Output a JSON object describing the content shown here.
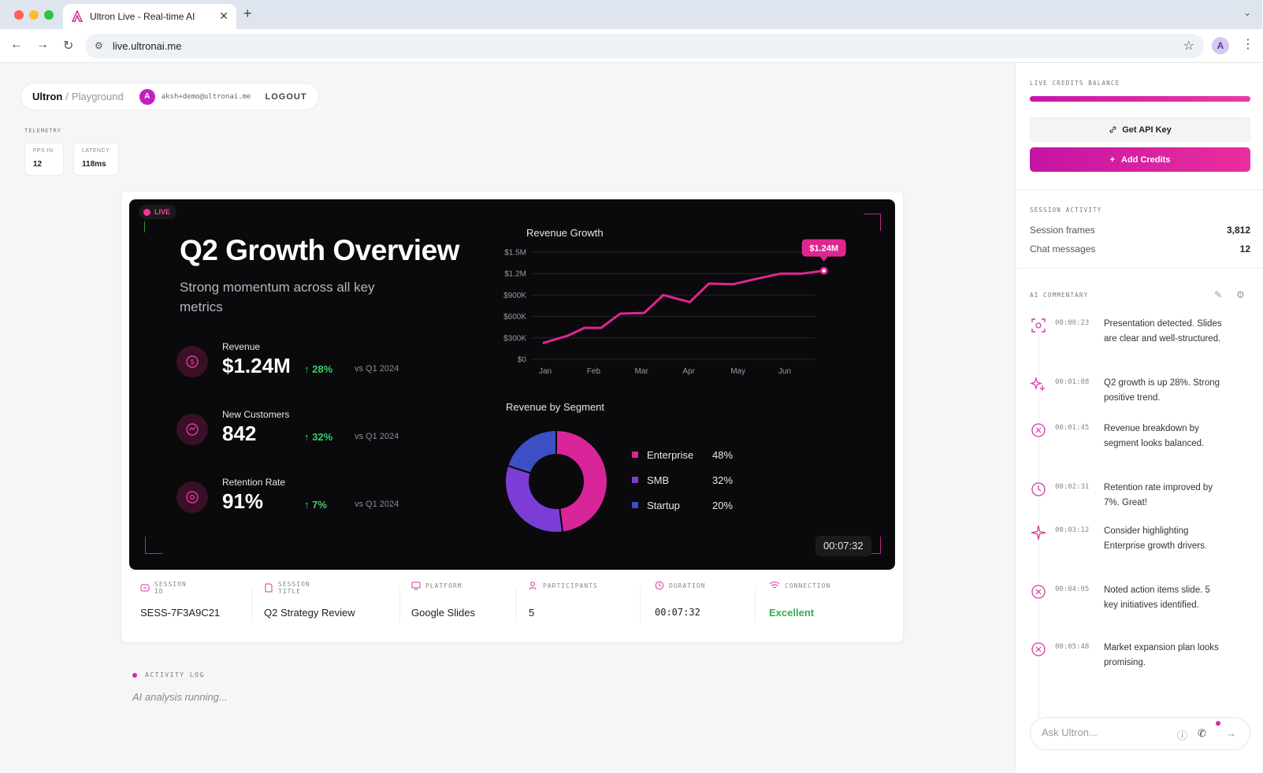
{
  "browser": {
    "tab_title": "Ultron Live - Real-time AI",
    "url": "live.ultronai.me",
    "profile_initial": "A"
  },
  "header": {
    "brand": "Ultron",
    "separator": "/",
    "page": "Playground",
    "avatar_initial": "A",
    "email": "aksh+demo@ultronai.me",
    "logout_label": "LOGOUT"
  },
  "telemetry": {
    "label": "TELEMETRY",
    "cards": [
      {
        "key": "FPS IN",
        "value": "12"
      },
      {
        "key": "LATENCY",
        "value": "118ms"
      }
    ]
  },
  "slide": {
    "live_label": "LIVE",
    "title": "Q2 Growth Overview",
    "subtitle": "Strong momentum across all key metrics",
    "metrics": [
      {
        "label": "Revenue",
        "value": "$1.24M",
        "delta": "↑ 28%",
        "vs": "vs Q1 2024"
      },
      {
        "label": "New Customers",
        "value": "842",
        "delta": "↑ 32%",
        "vs": "vs Q1 2024"
      },
      {
        "label": "Retention Rate",
        "value": "91%",
        "delta": "↑ 7%",
        "vs": "vs Q1 2024"
      }
    ],
    "timer": "00:07:32"
  },
  "chart_data": [
    {
      "type": "line",
      "title": "Revenue Growth",
      "xlabel": "",
      "ylabel": "",
      "x_ticks": [
        "Jan",
        "Feb",
        "Mar",
        "Apr",
        "May",
        "Jun"
      ],
      "y_ticks": [
        "$0",
        "$300K",
        "$600K",
        "$900K",
        "$1.2M",
        "$1.5M"
      ],
      "ylim": [
        0,
        1500000
      ],
      "x": [
        0,
        0.5,
        0.85,
        1.2,
        1.6,
        2.1,
        2.5,
        3.05,
        3.45,
        3.95,
        4.4,
        4.95,
        5.4,
        5.85
      ],
      "values": [
        230000,
        330000,
        440000,
        440000,
        640000,
        650000,
        900000,
        800000,
        1060000,
        1050000,
        1120000,
        1200000,
        1200000,
        1240000
      ],
      "annotation": "$1.24M",
      "grid": true,
      "color": "#e0268f"
    },
    {
      "type": "pie",
      "title": "Revenue by Segment",
      "donut": true,
      "categories": [
        "Enterprise",
        "SMB",
        "Startup"
      ],
      "values": [
        48,
        32,
        20
      ],
      "labels": [
        "48%",
        "32%",
        "20%"
      ],
      "colors": [
        "#d9259a",
        "#7b3dd6",
        "#3d4fc4"
      ],
      "legend": "right"
    }
  ],
  "session": {
    "fields": [
      {
        "key": "SESSION ID",
        "value": "SESS-7F3A9C21",
        "icon": "fingerprint-icon"
      },
      {
        "key": "SESSION TITLE",
        "value": "Q2 Strategy Review",
        "icon": "document-icon"
      },
      {
        "key": "PLATFORM",
        "value": "Google Slides",
        "icon": "monitor-icon"
      },
      {
        "key": "PARTICIPANTS",
        "value": "5",
        "icon": "users-icon"
      },
      {
        "key": "DURATION",
        "value": "00:07:32",
        "icon": "clock-icon"
      },
      {
        "key": "CONNECTION",
        "value": "Excellent",
        "icon": "wifi-icon"
      }
    ],
    "connection_color": "#2fae54"
  },
  "activity": {
    "label": "ACTIVITY LOG",
    "status": "AI analysis running..."
  },
  "sidebar": {
    "credits_label": "LIVE CREDITS BALANCE",
    "credits_fraction": 1.0,
    "api_button": "Get API Key",
    "add_credits_button": "Add Credits",
    "activity_label": "SESSION ACTIVITY",
    "stats": [
      {
        "label": "Session frames",
        "value": "3,812"
      },
      {
        "label": "Chat messages",
        "value": "12"
      }
    ],
    "commentary_label": "AI COMMENTARY",
    "commentary": [
      {
        "time": "00:00:23",
        "text": "Presentation detected. Slides are clear and well-structured.",
        "icon": "scan-icon"
      },
      {
        "time": "00:01:08",
        "text": "Q2 growth is up 28%. Strong positive trend.",
        "icon": "sparkle-icon"
      },
      {
        "time": "00:01:45",
        "text": "Revenue breakdown by segment looks balanced.",
        "icon": "target-icon"
      },
      {
        "time": "00:02:31",
        "text": "Retention rate improved by 7%. Great!",
        "icon": "clock-icon"
      },
      {
        "time": "00:03:12",
        "text": "Consider highlighting Enterprise growth drivers.",
        "icon": "star-icon"
      },
      {
        "time": "00:04:05",
        "text": "Noted action items slide. 5 key initiatives identified.",
        "icon": "target-icon"
      },
      {
        "time": "00:05:48",
        "text": "Market expansion plan looks promising.",
        "icon": "target-icon"
      }
    ],
    "ask_placeholder": "Ask Ultron..."
  }
}
